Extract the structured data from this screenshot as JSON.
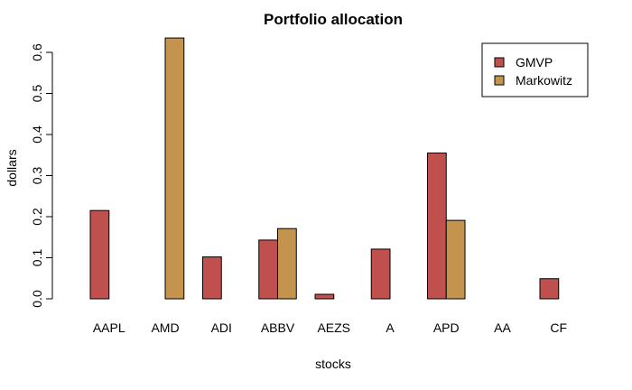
{
  "chart_data": {
    "type": "bar",
    "title": "Portfolio allocation",
    "xlabel": "stocks",
    "ylabel": "dollars",
    "categories": [
      "AAPL",
      "AMD",
      "ADI",
      "ABBV",
      "AEZS",
      "A",
      "APD",
      "AA",
      "CF"
    ],
    "series": [
      {
        "name": "GMVP",
        "color": "#C0504D",
        "values": [
          0.215,
          0.0,
          0.102,
          0.143,
          0.011,
          0.121,
          0.355,
          0.0,
          0.049
        ]
      },
      {
        "name": "Markowitz",
        "color": "#C4944E",
        "values": [
          0.0,
          0.635,
          0.0,
          0.171,
          0.0,
          0.0,
          0.191,
          0.0,
          0.0
        ]
      }
    ],
    "yticks": [
      "0.0",
      "0.1",
      "0.2",
      "0.3",
      "0.4",
      "0.5",
      "0.6"
    ],
    "ylim": [
      0,
      0.65
    ],
    "grid": false,
    "legend_position": "top-right"
  }
}
